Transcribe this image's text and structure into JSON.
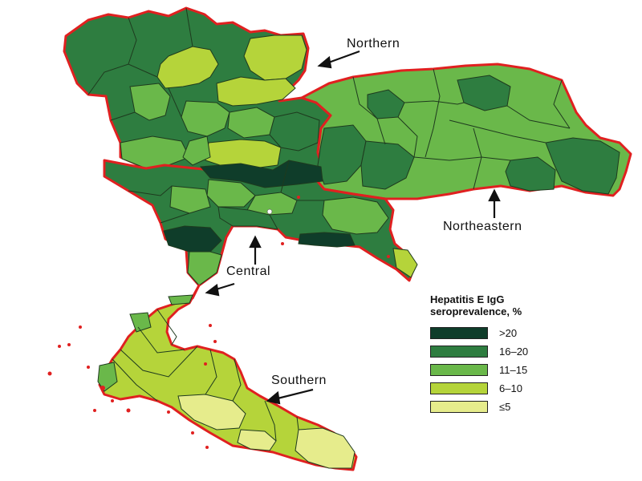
{
  "map": {
    "regions": [
      {
        "id": "northern",
        "label": "Northern"
      },
      {
        "id": "northeastern",
        "label": "Northeastern"
      },
      {
        "id": "central",
        "label": "Central"
      },
      {
        "id": "southern",
        "label": "Southern"
      }
    ],
    "border_color": "#e02020",
    "province_line_color": "#1e3a1e"
  },
  "legend": {
    "title_line1": "Hepatitis E IgG",
    "title_line2": "seroprevalence, %",
    "items": [
      {
        "label": ">20",
        "color": "#0f3d2a"
      },
      {
        "label": "16–20",
        "color": "#2e7d40"
      },
      {
        "label": "11–15",
        "color": "#6ab84a"
      },
      {
        "label": "6–10",
        "color": "#b5d43a"
      },
      {
        "label": "≤5",
        "color": "#e6ec8c"
      }
    ]
  }
}
